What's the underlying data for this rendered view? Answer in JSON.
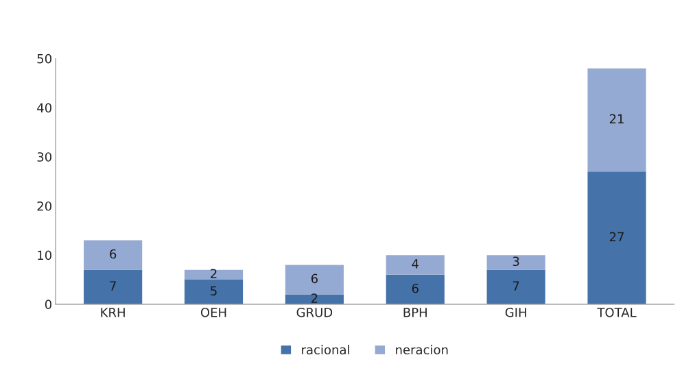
{
  "chart_data": {
    "type": "bar",
    "stacked": true,
    "categories": [
      "KRH",
      "OEH",
      "GRUD",
      "BPH",
      "GIH",
      "TOTAL"
    ],
    "series": [
      {
        "name": "racional",
        "color": "#4573a9",
        "values": [
          7,
          5,
          2,
          6,
          7,
          27
        ]
      },
      {
        "name": "neracion",
        "color": "#95aad2",
        "values": [
          6,
          2,
          6,
          4,
          3,
          21
        ]
      }
    ],
    "ylim": [
      0,
      50
    ],
    "yticks": [
      0,
      10,
      20,
      30,
      40,
      50
    ],
    "data_labels": true,
    "legend": "bottom",
    "grid": false
  }
}
